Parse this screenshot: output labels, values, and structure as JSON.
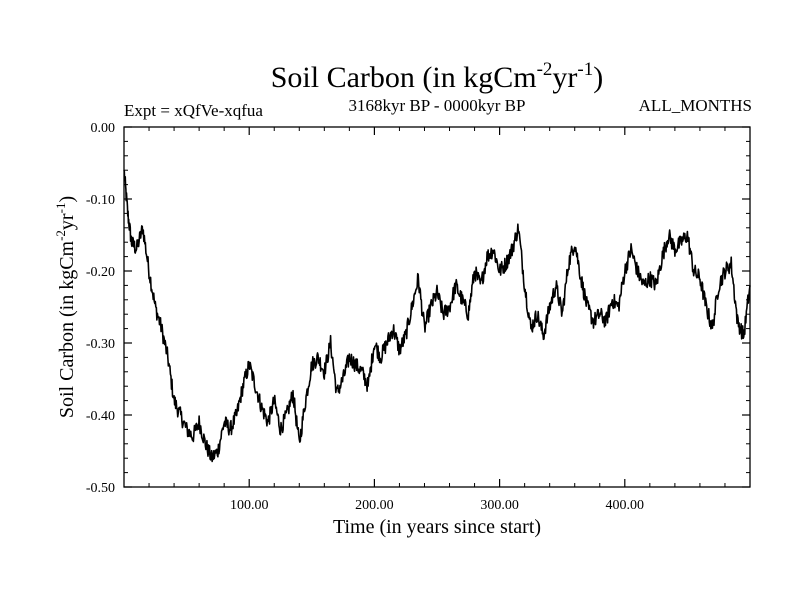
{
  "chart_data": {
    "type": "line",
    "title": {
      "main": "Soil Carbon (in kgCm",
      "exp1": "-2",
      "mid": "yr",
      "exp2": "-1",
      "close": ")"
    },
    "subtitle_left": "Expt = xQfVe-xqfua",
    "subtitle_center": "3168kyr BP - 0000kyr BP",
    "subtitle_right": "ALL_MONTHS",
    "xlabel": "Time (in years since start)",
    "ylabel": {
      "main": "Soil Carbon (in kgCm",
      "exp1": "-2",
      "mid": "yr",
      "exp2": "-1",
      "close": ")"
    },
    "xlim": [
      0,
      500
    ],
    "ylim": [
      -0.5,
      0.0
    ],
    "xticks": [
      100,
      200,
      300,
      400
    ],
    "xtick_labels": [
      "100.00",
      "200.00",
      "300.00",
      "400.00"
    ],
    "yticks": [
      0.0,
      -0.1,
      -0.2,
      -0.3,
      -0.4,
      -0.5
    ],
    "ytick_labels": [
      "0.00",
      "-0.10",
      "-0.20",
      "-0.30",
      "-0.40",
      "-0.50"
    ],
    "grid": false,
    "series": [
      {
        "name": "Soil Carbon",
        "x": [
          0,
          3,
          6,
          10,
          15,
          20,
          25,
          30,
          35,
          40,
          45,
          50,
          55,
          60,
          65,
          70,
          75,
          80,
          85,
          90,
          95,
          100,
          105,
          110,
          115,
          120,
          125,
          130,
          135,
          140,
          145,
          150,
          155,
          160,
          165,
          170,
          175,
          180,
          185,
          190,
          195,
          200,
          205,
          210,
          215,
          220,
          225,
          230,
          235,
          240,
          245,
          250,
          255,
          260,
          265,
          270,
          275,
          280,
          285,
          290,
          295,
          300,
          305,
          310,
          315,
          320,
          325,
          330,
          335,
          340,
          345,
          350,
          355,
          360,
          365,
          370,
          375,
          380,
          385,
          390,
          395,
          400,
          405,
          410,
          415,
          420,
          425,
          430,
          435,
          440,
          445,
          450,
          455,
          460,
          465,
          470,
          475,
          480,
          485,
          490,
          495,
          500
        ],
        "values": [
          -0.06,
          -0.12,
          -0.16,
          -0.17,
          -0.14,
          -0.2,
          -0.25,
          -0.28,
          -0.32,
          -0.38,
          -0.4,
          -0.42,
          -0.43,
          -0.41,
          -0.44,
          -0.46,
          -0.45,
          -0.41,
          -0.42,
          -0.4,
          -0.36,
          -0.33,
          -0.36,
          -0.39,
          -0.41,
          -0.38,
          -0.42,
          -0.4,
          -0.37,
          -0.44,
          -0.38,
          -0.33,
          -0.32,
          -0.34,
          -0.3,
          -0.37,
          -0.35,
          -0.32,
          -0.33,
          -0.34,
          -0.36,
          -0.3,
          -0.32,
          -0.3,
          -0.28,
          -0.31,
          -0.29,
          -0.25,
          -0.21,
          -0.28,
          -0.25,
          -0.23,
          -0.26,
          -0.25,
          -0.22,
          -0.24,
          -0.26,
          -0.2,
          -0.22,
          -0.18,
          -0.17,
          -0.2,
          -0.19,
          -0.17,
          -0.14,
          -0.22,
          -0.28,
          -0.26,
          -0.29,
          -0.25,
          -0.22,
          -0.26,
          -0.19,
          -0.16,
          -0.21,
          -0.25,
          -0.27,
          -0.26,
          -0.27,
          -0.24,
          -0.25,
          -0.2,
          -0.17,
          -0.2,
          -0.22,
          -0.21,
          -0.22,
          -0.18,
          -0.15,
          -0.17,
          -0.16,
          -0.15,
          -0.2,
          -0.21,
          -0.25,
          -0.28,
          -0.22,
          -0.2,
          -0.19,
          -0.27,
          -0.29,
          -0.22
        ]
      }
    ]
  }
}
